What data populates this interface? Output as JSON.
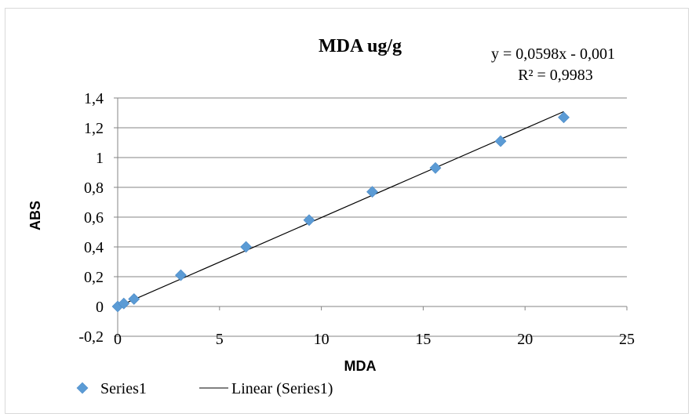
{
  "chart_data": {
    "type": "scatter",
    "title": "MDA ug/g",
    "xlabel": "MDA",
    "ylabel": "ABS",
    "xlim": [
      0,
      25
    ],
    "ylim": [
      -0.2,
      1.4
    ],
    "x_ticks": [
      0,
      5,
      10,
      15,
      20,
      25
    ],
    "x_tick_labels": [
      "0",
      "5",
      "10",
      "15",
      "20",
      "25"
    ],
    "y_ticks": [
      -0.2,
      0,
      0.2,
      0.4,
      0.6,
      0.8,
      1,
      1.2,
      1.4
    ],
    "y_tick_labels": [
      "-0,2",
      "0",
      "0,2",
      "0,4",
      "0,6",
      "0,8",
      "1",
      "1,2",
      "1,4"
    ],
    "grid": "horizontal",
    "legend_position": "bottom-left",
    "series": [
      {
        "name": "Series1",
        "marker": "diamond",
        "color": "#5b9bd5",
        "points": [
          {
            "x": 0,
            "y": 0
          },
          {
            "x": 0.3,
            "y": 0.02
          },
          {
            "x": 0.8,
            "y": 0.05
          },
          {
            "x": 3.1,
            "y": 0.21
          },
          {
            "x": 6.3,
            "y": 0.4
          },
          {
            "x": 9.4,
            "y": 0.58
          },
          {
            "x": 12.5,
            "y": 0.77
          },
          {
            "x": 15.6,
            "y": 0.93
          },
          {
            "x": 18.8,
            "y": 1.11
          },
          {
            "x": 21.9,
            "y": 1.27
          }
        ]
      }
    ],
    "trendline": {
      "name": "Linear (Series1)",
      "type": "linear",
      "slope": 0.0598,
      "intercept": -0.001,
      "x_range": [
        0,
        21.9
      ],
      "color": "#000000",
      "equation_label": "y = 0,0598x - 0,001",
      "r2_label": "R² = 0,9983"
    },
    "legend": [
      "Series1",
      "Linear (Series1)"
    ]
  }
}
